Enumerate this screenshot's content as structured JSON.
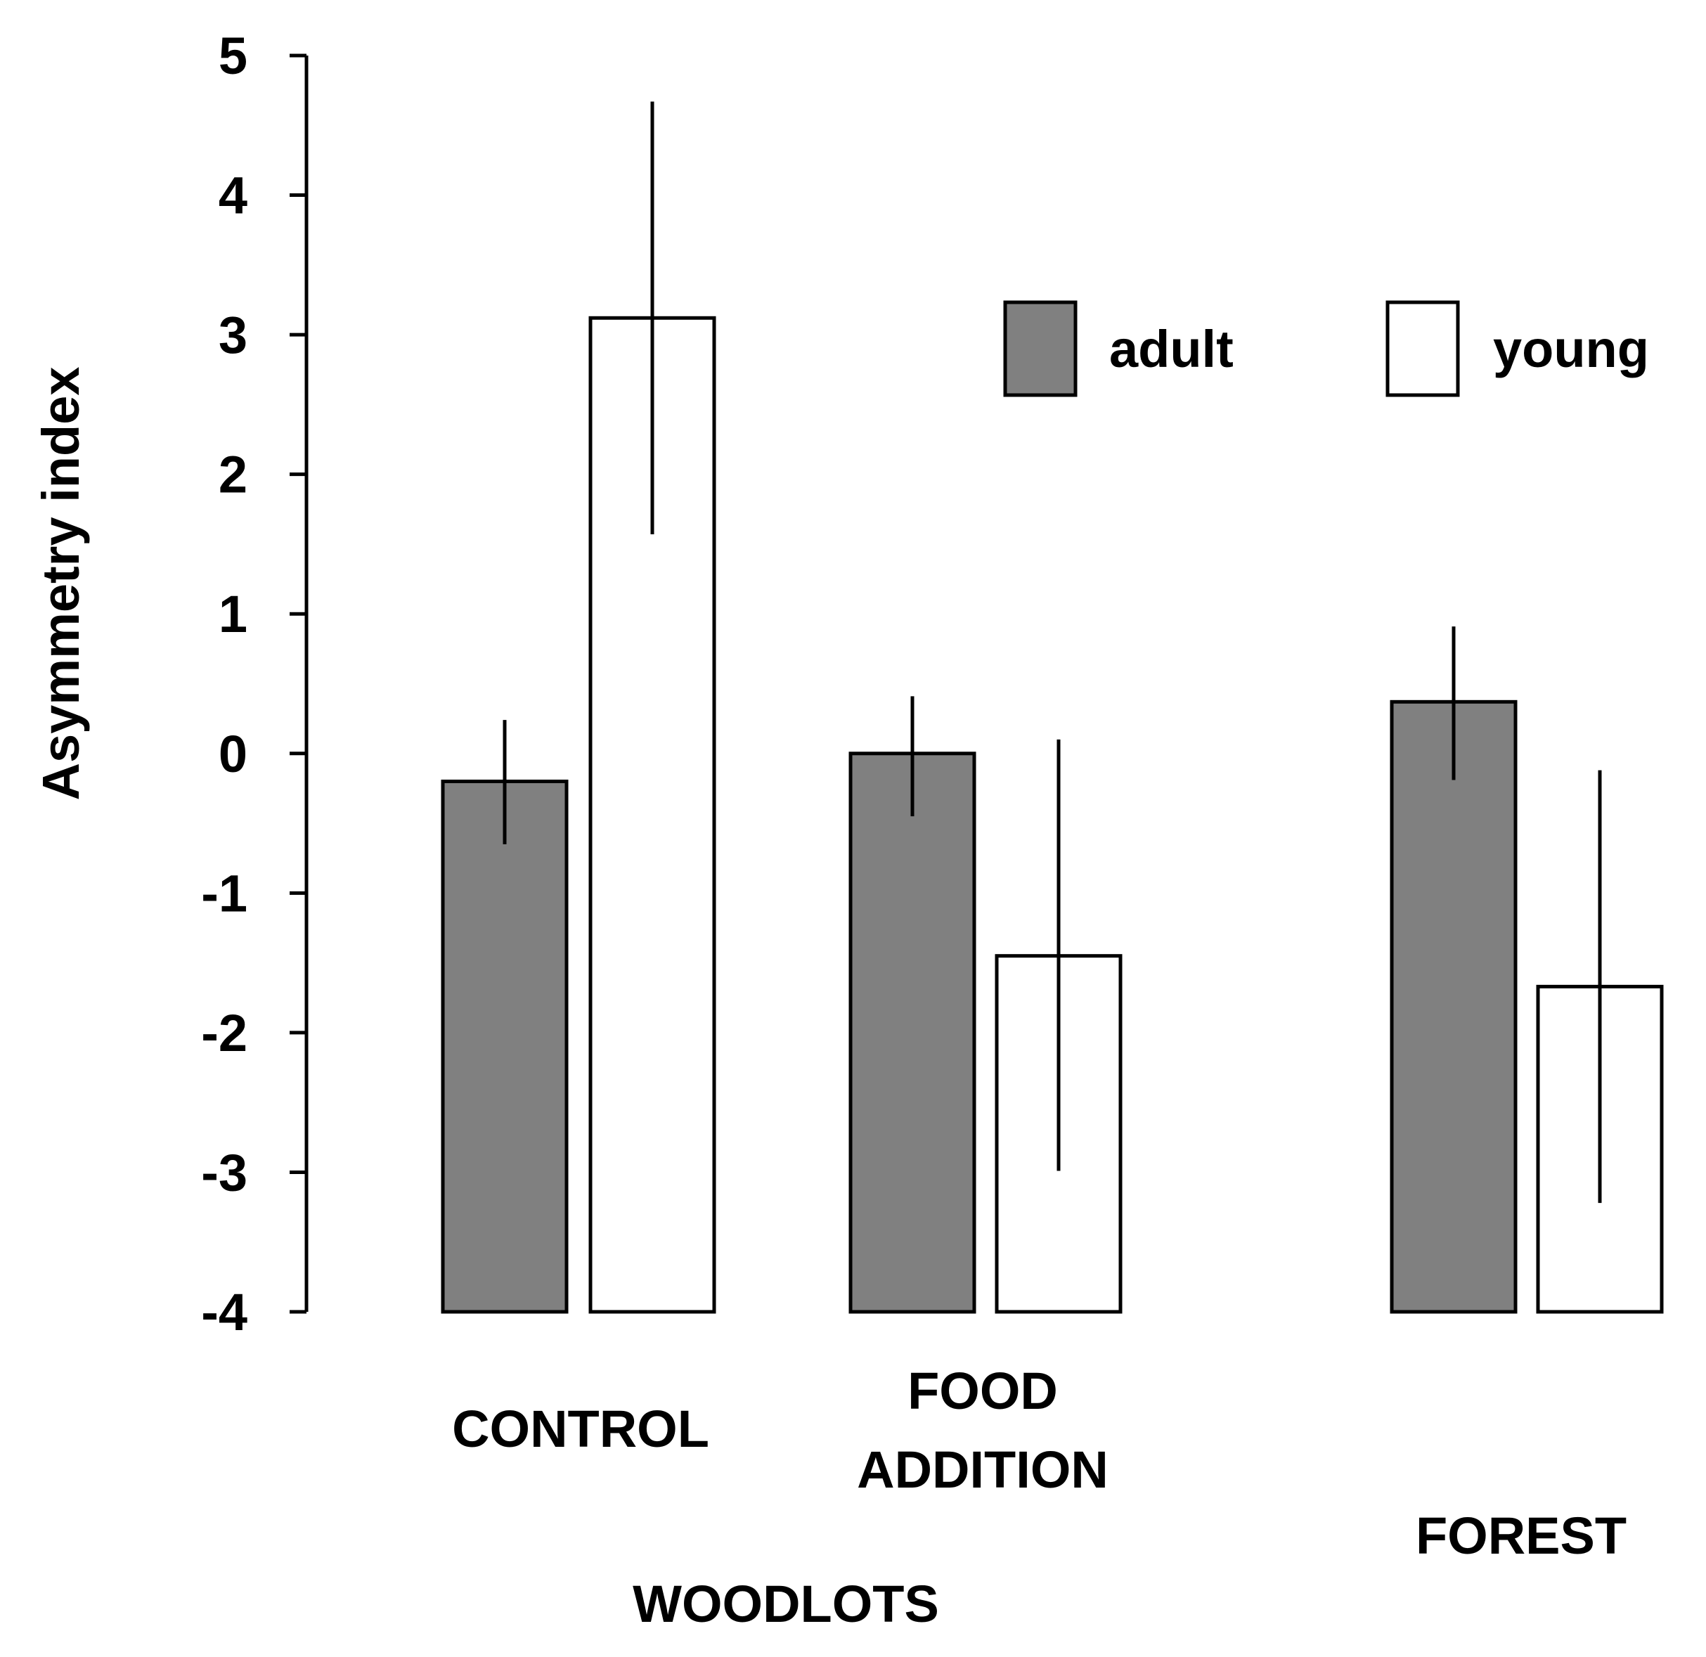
{
  "chart_data": {
    "type": "bar",
    "ylabel": "Asymmetry index",
    "ylim": [
      -4,
      5
    ],
    "yticks": [
      "5",
      "4",
      "3",
      "2",
      "1",
      "0",
      "-1",
      "-2",
      "-3",
      "-4"
    ],
    "categories": [
      "CONTROL",
      "FOOD ADDITION",
      "FOREST"
    ],
    "category_lines": [
      [
        "CONTROL"
      ],
      [
        "FOOD",
        "ADDITION"
      ],
      [
        "FOREST"
      ]
    ],
    "group_label": "WOODLOTS",
    "legend_position": "top-right",
    "series": [
      {
        "name": "adult",
        "color": "#808080",
        "values": [
          -0.2,
          0.0,
          0.37
        ],
        "error_low": [
          -0.65,
          -0.45,
          -0.19
        ],
        "error_high": [
          0.24,
          0.41,
          0.91
        ]
      },
      {
        "name": "young",
        "color": "#ffffff",
        "values": [
          3.12,
          -1.45,
          -1.67
        ],
        "error_low": [
          1.57,
          -2.99,
          -3.22
        ],
        "error_high": [
          4.67,
          0.1,
          -0.12
        ]
      }
    ],
    "grid": false
  }
}
